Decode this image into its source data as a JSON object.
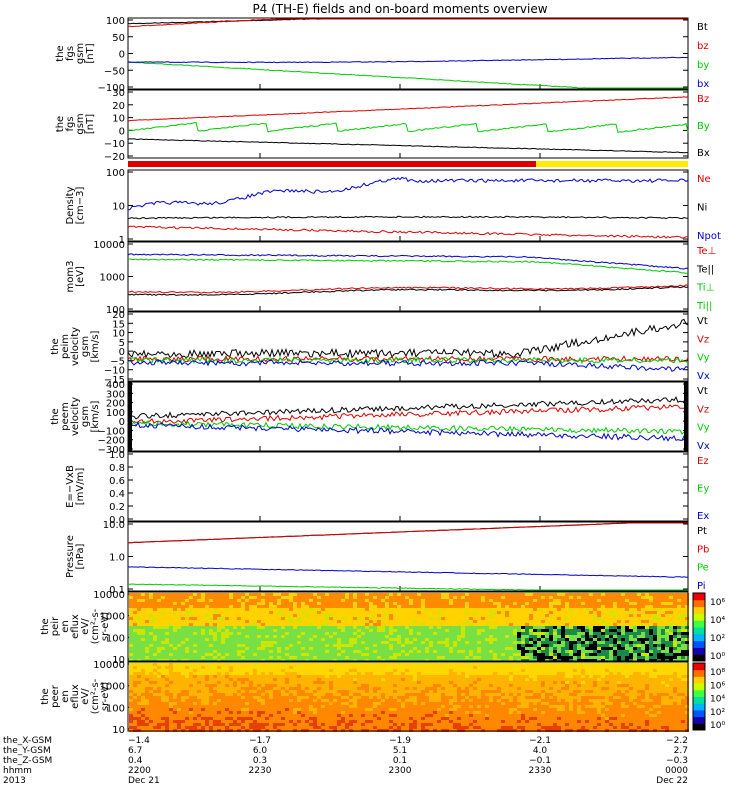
{
  "title": "P4 (TH-E) fields and on-board moments overview",
  "colors": {
    "black": "#000000",
    "red": "#dd0000",
    "green": "#00cc00",
    "blue": "#0000cc",
    "yellow": "#ffee00"
  },
  "chart_data": [
    {
      "type": "line",
      "id": "p1",
      "ylabel": [
        "the",
        "fgs",
        "gsm",
        "[nT]"
      ],
      "yticks": [
        "100",
        "50",
        "0",
        "−50",
        "−100"
      ],
      "series": [
        {
          "name": "Bt",
          "color": "black"
        },
        {
          "name": "bz",
          "color": "red"
        },
        {
          "name": "by",
          "color": "green"
        },
        {
          "name": "bx",
          "color": "blue"
        }
      ]
    },
    {
      "type": "line",
      "id": "p2",
      "ylabel": [
        "the",
        "fgs",
        "gsm",
        "[nT]"
      ],
      "yticks": [
        "30",
        "20",
        "10",
        "0",
        "−10",
        "−20"
      ],
      "series": [
        {
          "name": "Bz",
          "color": "red"
        },
        {
          "name": "By",
          "color": "green"
        },
        {
          "name": "Bx",
          "color": "black"
        }
      ]
    },
    {
      "type": "line",
      "id": "p3",
      "ylabel": [
        "Density",
        "[cm−3]"
      ],
      "yticks": [
        "100",
        "10",
        "1"
      ],
      "series": [
        {
          "name": "Ne",
          "color": "red"
        },
        {
          "name": "Ni",
          "color": "black"
        },
        {
          "name": "Npot",
          "color": "blue"
        }
      ]
    },
    {
      "type": "line",
      "id": "p4",
      "ylabel": [
        "mom3",
        "[eV]"
      ],
      "yticks": [
        "10000",
        "1000",
        "100"
      ],
      "series": [
        {
          "name": "Te⊥",
          "color": "red"
        },
        {
          "name": "Te||",
          "color": "black"
        },
        {
          "name": "Ti⊥",
          "color": "green"
        },
        {
          "name": "Ti||",
          "color": "green"
        }
      ]
    },
    {
      "type": "line",
      "id": "p5",
      "ylabel": [
        "the",
        "peim",
        "velocity",
        "gsm",
        "[km/s]"
      ],
      "yticks": [
        "20",
        "15",
        "10",
        "5",
        "0",
        "−5",
        "−10",
        "−15"
      ],
      "series": [
        {
          "name": "Vt",
          "color": "black"
        },
        {
          "name": "Vz",
          "color": "red"
        },
        {
          "name": "Vy",
          "color": "green"
        },
        {
          "name": "Vx",
          "color": "blue"
        }
      ]
    },
    {
      "type": "line",
      "id": "p6",
      "ylabel": [
        "the",
        "peem",
        "velocity",
        "gsm",
        "[km/s]"
      ],
      "yticks": [
        "400",
        "300",
        "200",
        "100",
        "0",
        "−100",
        "−200",
        "−300"
      ],
      "series": [
        {
          "name": "Vt",
          "color": "black"
        },
        {
          "name": "Vz",
          "color": "red"
        },
        {
          "name": "Vy",
          "color": "green"
        },
        {
          "name": "Vx",
          "color": "blue"
        }
      ]
    },
    {
      "type": "line",
      "id": "p7",
      "ylabel": [
        "E=−VxB",
        "[mV/m]"
      ],
      "yticks": [
        "1.0",
        "0.8",
        "0.6",
        "0.4",
        "0.2",
        "0.0"
      ],
      "series": [
        {
          "name": "Ez",
          "color": "red"
        },
        {
          "name": "Ey",
          "color": "green"
        },
        {
          "name": "Ex",
          "color": "blue"
        }
      ]
    },
    {
      "type": "line",
      "id": "p8",
      "ylabel": [
        "Pressure",
        "[nPa]"
      ],
      "yticks": [
        "10.0",
        "1.0",
        "0.1"
      ],
      "series": [
        {
          "name": "Pt",
          "color": "black"
        },
        {
          "name": "Pb",
          "color": "red"
        },
        {
          "name": "Pe",
          "color": "green"
        },
        {
          "name": "Pi",
          "color": "blue"
        }
      ]
    },
    {
      "type": "heatmap",
      "id": "p9",
      "ylabel": [
        "the",
        "peir",
        "en",
        "eflux",
        "eV/",
        "(cm²-s-",
        "sr-eV)"
      ],
      "yticks": [
        "10000",
        "1000",
        "100",
        "10"
      ],
      "colorbar": [
        "10⁶",
        "10⁴",
        "10²",
        "10⁰"
      ]
    },
    {
      "type": "heatmap",
      "id": "p10",
      "ylabel": [
        "the",
        "peer",
        "en",
        "eflux",
        "eV/",
        "(cm²-s-",
        "sr-eV)"
      ],
      "yticks": [
        "10000",
        "1000",
        "100",
        "10"
      ],
      "colorbar": [
        "10⁸",
        "10⁶",
        "10⁴",
        "10²",
        "10⁰"
      ]
    }
  ],
  "xaxis": {
    "rows": [
      {
        "label": "the_X-GSM",
        "values": [
          "−1.4",
          "−1.7",
          "−1.9",
          "−2.1",
          "−2.2"
        ]
      },
      {
        "label": "the_Y-GSM",
        "values": [
          "6.7",
          "6.0",
          "5.1",
          "4.0",
          "2.7"
        ]
      },
      {
        "label": "the_Z-GSM",
        "values": [
          "0.4",
          "0.3",
          "0.1",
          "−0.1",
          "−0.3"
        ]
      },
      {
        "label": "hhmm",
        "values": [
          "2200",
          "2230",
          "2300",
          "2330",
          "0000"
        ]
      },
      {
        "label": "2013",
        "values": [
          "Dec 21",
          "",
          "",
          "",
          "Dec 22"
        ]
      }
    ]
  }
}
